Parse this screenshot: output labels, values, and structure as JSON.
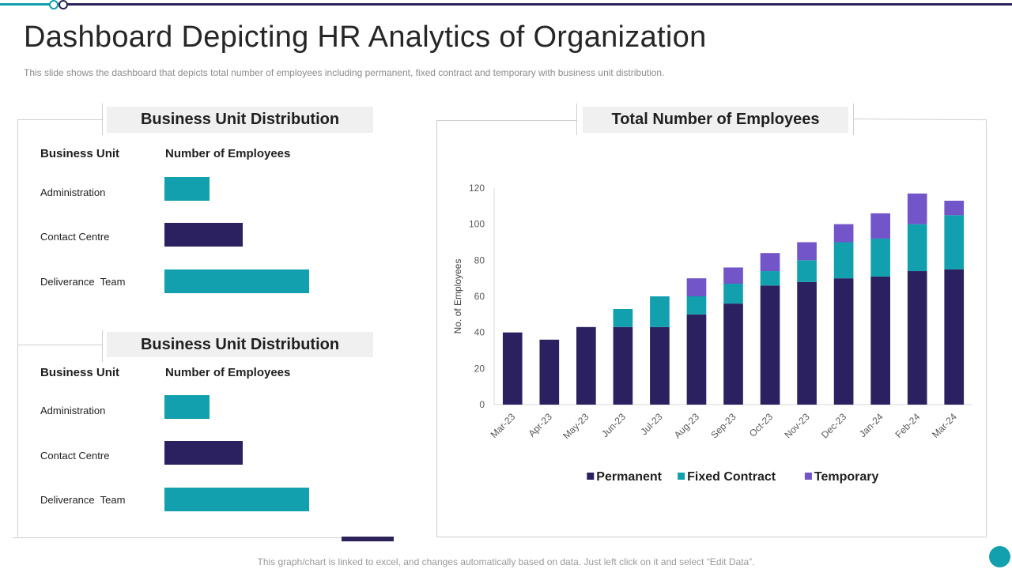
{
  "slide": {
    "title": "Dashboard Depicting HR Analytics of Organization",
    "subtitle": "This slide shows the dashboard that depicts total number of employees including permanent, fixed contract and temporary with business unit distribution.",
    "footer": "This graph/chart is linked to excel, and changes automatically based on data. Just left click on it and select “Edit Data”."
  },
  "colors": {
    "permanent": "#2c2160",
    "fixed": "#12a0ae",
    "temporary": "#7155c9",
    "accent": "#12a0ae"
  },
  "panels": [
    {
      "heading": "Business Unit Distribution",
      "col_unit": "Business Unit",
      "col_count": "Number of Employees",
      "rows": [
        {
          "label": "Administration",
          "value": 19,
          "color": "#12a0ae"
        },
        {
          "label": "Contact Centre",
          "value": 33,
          "color": "#2c2160"
        },
        {
          "label": "Deliverance  Team",
          "value": 61,
          "color": "#12a0ae"
        }
      ]
    },
    {
      "heading": "Business Unit Distribution",
      "col_unit": "Business Unit",
      "col_count": "Number of Employees",
      "rows": [
        {
          "label": "Administration",
          "value": 19,
          "color": "#12a0ae"
        },
        {
          "label": "Contact Centre",
          "value": 33,
          "color": "#2c2160"
        },
        {
          "label": "Deliverance  Team",
          "value": 61,
          "color": "#12a0ae"
        }
      ]
    }
  ],
  "chart_panel": {
    "heading": "Total Number of Employees"
  },
  "chart_data": {
    "type": "bar",
    "stacked": true,
    "title": "Total Number of Employees",
    "xlabel": "",
    "ylabel": "No. of Employees",
    "ylim": [
      0,
      120
    ],
    "yticks": [
      0,
      20,
      40,
      60,
      80,
      100,
      120
    ],
    "categories": [
      "Mar-23",
      "Apr-23",
      "May-23",
      "Jun-23",
      "Jul-23",
      "Aug-23",
      "Sep-23",
      "Oct-23",
      "Nov-23",
      "Dec-23",
      "Jan-24",
      "Feb-24",
      "Mar-24"
    ],
    "series": [
      {
        "name": "Permanent",
        "color": "#2c2160",
        "values": [
          40,
          36,
          43,
          43,
          43,
          50,
          56,
          66,
          68,
          70,
          71,
          74,
          75
        ]
      },
      {
        "name": "Fixed Contract",
        "color": "#12a0ae",
        "values": [
          0,
          0,
          0,
          10,
          17,
          10,
          11,
          8,
          12,
          20,
          21,
          26,
          30
        ]
      },
      {
        "name": "Temporary",
        "color": "#7155c9",
        "values": [
          0,
          0,
          0,
          0,
          0,
          10,
          9,
          10,
          10,
          10,
          14,
          17,
          8
        ]
      }
    ],
    "legend": "bottom"
  }
}
